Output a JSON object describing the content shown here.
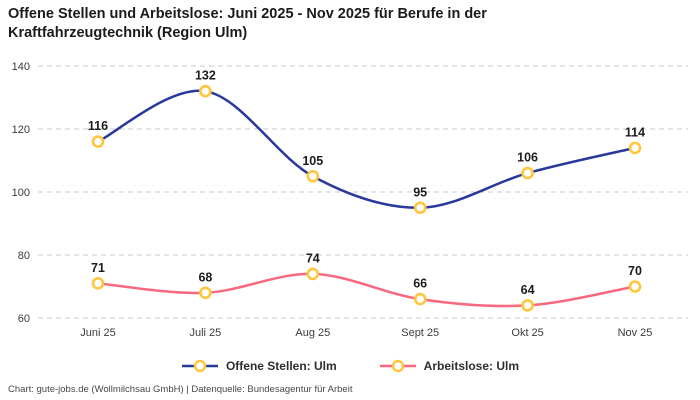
{
  "header": {
    "title": "Offene Stellen und Arbeitslose: Juni 2025 - Nov 2025 für Berufe in der Kraftfahrzeugtechnik (Region Ulm)"
  },
  "chart_data": {
    "type": "line",
    "title": "Offene Stellen und Arbeitslose: Juni 2025 - Nov 2025 für Berufe in der Kraftfahrzeugtechnik (Region Ulm)",
    "categories": [
      "Juni 25",
      "Juli 25",
      "Aug 25",
      "Sept 25",
      "Okt 25",
      "Nov 25"
    ],
    "series": [
      {
        "name": "Offene Stellen: Ulm",
        "color": "#28389b",
        "values": [
          116,
          132,
          105,
          95,
          106,
          114
        ]
      },
      {
        "name": "Arbeitslose: Ulm",
        "color": "#f8687e",
        "values": [
          71,
          68,
          74,
          66,
          64,
          70
        ]
      }
    ],
    "marker": {
      "fill": "#ffffff",
      "stroke": "#ffc53d"
    },
    "yticks": [
      60,
      80,
      100,
      120,
      140
    ],
    "ylim": [
      60,
      140
    ],
    "xlabel": "",
    "ylabel": "",
    "grid": "horizontal-dashed",
    "gridline_color": "#c9c9c9",
    "smooth": true,
    "point_labels": true,
    "legend_position": "bottom"
  },
  "footer": {
    "credit": "Chart: gute-jobs.de (Wollmilchsau GmbH) | Datenquelle: Bundesagentur für Arbeit"
  }
}
